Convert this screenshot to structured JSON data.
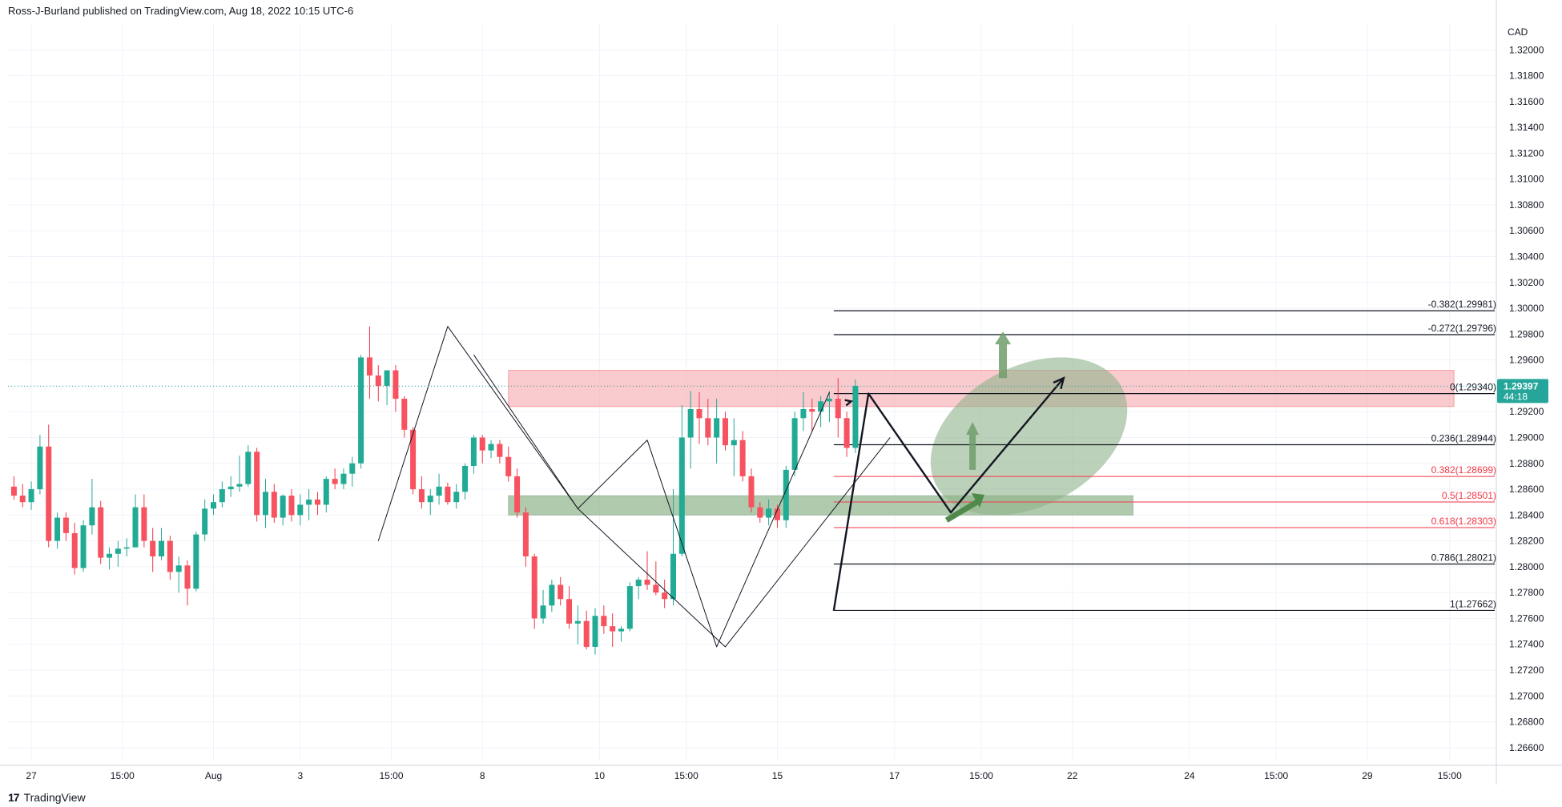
{
  "header": {
    "text": "Ross-J-Burland published on TradingView.com, Aug 18, 2022 10:15 UTC-6"
  },
  "footer": {
    "logo_text": "17",
    "brand": "TradingView"
  },
  "colors": {
    "up": "#26a69a",
    "up_fill": "#22ab94",
    "down": "#f23645",
    "down_fill": "#f7525f",
    "resistance_zone": "#f7a8ae",
    "support_zone": "#8fb38a",
    "highlight_ellipse": "#8fb38a",
    "fib_level_black": "#131722",
    "fib_level_red": "#f23645",
    "grid": "#f0f3fa",
    "price_badge": "#26a69a"
  },
  "chart_data": {
    "type": "candlestick",
    "symbol_currency": "CAD",
    "y_axis": {
      "min": 1.265,
      "max": 1.322,
      "ticks": [
        "1.32000",
        "1.31800",
        "1.31600",
        "1.31400",
        "1.31200",
        "1.31000",
        "1.30800",
        "1.30600",
        "1.30400",
        "1.30200",
        "1.30000",
        "1.29800",
        "1.29600",
        "1.29400",
        "1.29200",
        "1.29000",
        "1.28800",
        "1.28600",
        "1.28400",
        "1.28200",
        "1.28000",
        "1.27800",
        "1.27600",
        "1.27400",
        "1.27200",
        "1.27000",
        "1.26800",
        "1.26600"
      ]
    },
    "x_axis": {
      "ticks": [
        {
          "label": "27",
          "idx": 2
        },
        {
          "label": "15:00",
          "idx": 12.5
        },
        {
          "label": "Aug",
          "idx": 23
        },
        {
          "label": "3",
          "idx": 33
        },
        {
          "label": "15:00",
          "idx": 43.5
        },
        {
          "label": "8",
          "idx": 54
        },
        {
          "label": "10",
          "idx": 67.5
        },
        {
          "label": "15:00",
          "idx": 77.5
        },
        {
          "label": "15",
          "idx": 88
        },
        {
          "label": "17",
          "idx": 101.5
        },
        {
          "label": "15:00",
          "idx": 111.5
        },
        {
          "label": "22",
          "idx": 122
        },
        {
          "label": "24",
          "idx": 135.5
        },
        {
          "label": "15:00",
          "idx": 145.5
        },
        {
          "label": "29",
          "idx": 156
        },
        {
          "label": "15:00",
          "idx": 165.5
        }
      ]
    },
    "current_price": {
      "value": 1.29397,
      "label": "1.29397",
      "countdown": "44:18"
    },
    "candles": [
      [
        1.2862,
        1.287,
        1.2852,
        1.2855
      ],
      [
        1.2855,
        1.2864,
        1.2846,
        1.285
      ],
      [
        1.285,
        1.2866,
        1.2844,
        1.286
      ],
      [
        1.286,
        1.2902,
        1.2856,
        1.2893
      ],
      [
        1.2893,
        1.291,
        1.2815,
        1.282
      ],
      [
        1.282,
        1.2842,
        1.2814,
        1.2838
      ],
      [
        1.2838,
        1.2842,
        1.282,
        1.2826
      ],
      [
        1.2826,
        1.2834,
        1.2794,
        1.2799
      ],
      [
        1.2799,
        1.2836,
        1.2796,
        1.2832
      ],
      [
        1.2832,
        1.2868,
        1.2825,
        1.2846
      ],
      [
        1.2846,
        1.2851,
        1.2802,
        1.2807
      ],
      [
        1.2807,
        1.2815,
        1.2798,
        1.281
      ],
      [
        1.281,
        1.282,
        1.28,
        1.2814
      ],
      [
        1.2814,
        1.2822,
        1.2808,
        1.2815
      ],
      [
        1.2815,
        1.2856,
        1.2818,
        1.2846
      ],
      [
        1.2846,
        1.2856,
        1.2815,
        1.282
      ],
      [
        1.282,
        1.283,
        1.2796,
        1.2808
      ],
      [
        1.2808,
        1.283,
        1.2805,
        1.282
      ],
      [
        1.282,
        1.2824,
        1.279,
        1.2796
      ],
      [
        1.2796,
        1.2808,
        1.278,
        1.2801
      ],
      [
        1.2801,
        1.2805,
        1.277,
        1.2783
      ],
      [
        1.2783,
        1.2827,
        1.2781,
        1.2825
      ],
      [
        1.2825,
        1.2852,
        1.282,
        1.2845
      ],
      [
        1.2845,
        1.2856,
        1.284,
        1.285
      ],
      [
        1.285,
        1.2866,
        1.2846,
        1.286
      ],
      [
        1.286,
        1.287,
        1.2854,
        1.2862
      ],
      [
        1.2862,
        1.2886,
        1.2858,
        1.2864
      ],
      [
        1.2864,
        1.2894,
        1.2862,
        1.2889
      ],
      [
        1.2889,
        1.2892,
        1.2835,
        1.284
      ],
      [
        1.284,
        1.2868,
        1.283,
        1.2858
      ],
      [
        1.2858,
        1.2864,
        1.2834,
        1.2838
      ],
      [
        1.2838,
        1.2856,
        1.2832,
        1.2855
      ],
      [
        1.2855,
        1.286,
        1.2835,
        1.284
      ],
      [
        1.284,
        1.2856,
        1.2832,
        1.2848
      ],
      [
        1.2848,
        1.286,
        1.2836,
        1.2852
      ],
      [
        1.2852,
        1.2858,
        1.284,
        1.2848
      ],
      [
        1.2848,
        1.287,
        1.2842,
        1.2868
      ],
      [
        1.2868,
        1.2876,
        1.286,
        1.2864
      ],
      [
        1.2864,
        1.2876,
        1.286,
        1.2872
      ],
      [
        1.2872,
        1.2885,
        1.2862,
        1.288
      ],
      [
        1.288,
        1.2964,
        1.2876,
        1.2962
      ],
      [
        1.2962,
        1.2986,
        1.293,
        1.2948
      ],
      [
        1.2948,
        1.2956,
        1.2928,
        1.294
      ],
      [
        1.294,
        1.2952,
        1.2925,
        1.2952
      ],
      [
        1.2952,
        1.2956,
        1.292,
        1.293
      ],
      [
        1.293,
        1.2932,
        1.29,
        1.2906
      ],
      [
        1.2906,
        1.2908,
        1.2856,
        1.286
      ],
      [
        1.286,
        1.287,
        1.2845,
        1.285
      ],
      [
        1.285,
        1.286,
        1.284,
        1.2855
      ],
      [
        1.2855,
        1.2872,
        1.2848,
        1.2862
      ],
      [
        1.2862,
        1.2865,
        1.2848,
        1.285
      ],
      [
        1.285,
        1.2864,
        1.2845,
        1.2858
      ],
      [
        1.2858,
        1.288,
        1.2852,
        1.2878
      ],
      [
        1.2878,
        1.2902,
        1.2872,
        1.29
      ],
      [
        1.29,
        1.2902,
        1.288,
        1.289
      ],
      [
        1.289,
        1.2898,
        1.2884,
        1.2895
      ],
      [
        1.2895,
        1.2898,
        1.288,
        1.2885
      ],
      [
        1.2885,
        1.2893,
        1.2866,
        1.287
      ],
      [
        1.287,
        1.2876,
        1.2838,
        1.2842
      ],
      [
        1.2842,
        1.2846,
        1.28,
        1.2808
      ],
      [
        1.2808,
        1.281,
        1.2752,
        1.276
      ],
      [
        1.276,
        1.2782,
        1.2756,
        1.277
      ],
      [
        1.277,
        1.279,
        1.2765,
        1.2786
      ],
      [
        1.2786,
        1.2792,
        1.277,
        1.2775
      ],
      [
        1.2775,
        1.2785,
        1.2752,
        1.2756
      ],
      [
        1.2756,
        1.277,
        1.274,
        1.2758
      ],
      [
        1.2758,
        1.2766,
        1.2736,
        1.2738
      ],
      [
        1.2738,
        1.2768,
        1.2732,
        1.2762
      ],
      [
        1.2762,
        1.277,
        1.2748,
        1.2754
      ],
      [
        1.2754,
        1.2764,
        1.2738,
        1.275
      ],
      [
        1.275,
        1.2754,
        1.2742,
        1.2752
      ],
      [
        1.2752,
        1.2788,
        1.275,
        1.2785
      ],
      [
        1.2785,
        1.2792,
        1.2775,
        1.279
      ],
      [
        1.279,
        1.2812,
        1.2782,
        1.2786
      ],
      [
        1.2786,
        1.2804,
        1.2778,
        1.278
      ],
      [
        1.278,
        1.279,
        1.2768,
        1.2775
      ],
      [
        1.2775,
        1.286,
        1.277,
        1.281
      ],
      [
        1.281,
        1.2925,
        1.2808,
        1.29
      ],
      [
        1.29,
        1.2936,
        1.2876,
        1.2922
      ],
      [
        1.2922,
        1.2935,
        1.2895,
        1.2915
      ],
      [
        1.2915,
        1.293,
        1.2894,
        1.29
      ],
      [
        1.29,
        1.293,
        1.288,
        1.2915
      ],
      [
        1.2915,
        1.292,
        1.289,
        1.2894
      ],
      [
        1.2894,
        1.2915,
        1.287,
        1.2898
      ],
      [
        1.2898,
        1.2905,
        1.2866,
        1.287
      ],
      [
        1.287,
        1.2876,
        1.2842,
        1.2846
      ],
      [
        1.2846,
        1.285,
        1.2834,
        1.2838
      ],
      [
        1.2838,
        1.2852,
        1.2832,
        1.2845
      ],
      [
        1.2845,
        1.2848,
        1.283,
        1.2836
      ],
      [
        1.2836,
        1.2878,
        1.283,
        1.2875
      ],
      [
        1.2875,
        1.292,
        1.287,
        1.2915
      ],
      [
        1.2915,
        1.2935,
        1.2905,
        1.2922
      ],
      [
        1.2922,
        1.293,
        1.2905,
        1.292
      ],
      [
        1.292,
        1.2932,
        1.2908,
        1.2928
      ],
      [
        1.2928,
        1.2936,
        1.2912,
        1.293
      ],
      [
        1.293,
        1.2946,
        1.29,
        1.2915
      ],
      [
        1.2915,
        1.292,
        1.2885,
        1.2892
      ],
      [
        1.2892,
        1.2945,
        1.2888,
        1.294
      ]
    ],
    "candle_index_offset": 0,
    "zones": [
      {
        "name": "resistance",
        "x_from_idx": 57,
        "x_to_idx": 166,
        "y_from": 1.2924,
        "y_to": 1.2952
      },
      {
        "name": "support",
        "x_from_idx": 57,
        "x_to_idx": 129,
        "y_from": 1.284,
        "y_to": 1.2855
      }
    ],
    "fib_levels": [
      {
        "ratio": "-0.382",
        "value": 1.29981,
        "label": "-0.382(1.29981)",
        "color": "black"
      },
      {
        "ratio": "-0.272",
        "value": 1.29796,
        "label": "-0.272(1.29796)",
        "color": "black"
      },
      {
        "ratio": "0",
        "value": 1.2934,
        "label": "0(1.29340)",
        "color": "black"
      },
      {
        "ratio": "0.236",
        "value": 1.28944,
        "label": "0.236(1.28944)",
        "color": "black"
      },
      {
        "ratio": "0.382",
        "value": 1.28699,
        "label": "0.382(1.28699)",
        "color": "red"
      },
      {
        "ratio": "0.5",
        "value": 1.28501,
        "label": "0.5(1.28501)",
        "color": "red"
      },
      {
        "ratio": "0.618",
        "value": 1.28303,
        "label": "0.618(1.28303)",
        "color": "red"
      },
      {
        "ratio": "0.786",
        "value": 1.28021,
        "label": "0.786(1.28021)",
        "color": "black"
      },
      {
        "ratio": "1",
        "value": 1.27662,
        "label": "1(1.27662)",
        "color": "black"
      }
    ],
    "fib_x_from_idx": 94.5,
    "fib_x_to_idx": 178,
    "patterns": {
      "thin_zigzag": [
        [
          42,
          1.282
        ],
        [
          50,
          1.2986
        ],
        [
          65,
          1.2845
        ],
        [
          82,
          1.2738
        ],
        [
          101,
          1.29
        ]
      ],
      "thin_zigzag2": [
        [
          53,
          1.2964
        ],
        [
          65,
          1.2845
        ],
        [
          73,
          1.2898
        ],
        [
          81,
          1.2738
        ],
        [
          94,
          1.2935
        ]
      ],
      "bold_zigzag": [
        [
          94.5,
          1.2766
        ],
        [
          98.5,
          1.2934
        ],
        [
          108,
          1.2842
        ],
        [
          121,
          1.2946
        ]
      ],
      "ellipse": {
        "cx_idx": 117,
        "cy": 1.2901,
        "rx_idx": 11,
        "ry": 0.0054
      }
    }
  }
}
